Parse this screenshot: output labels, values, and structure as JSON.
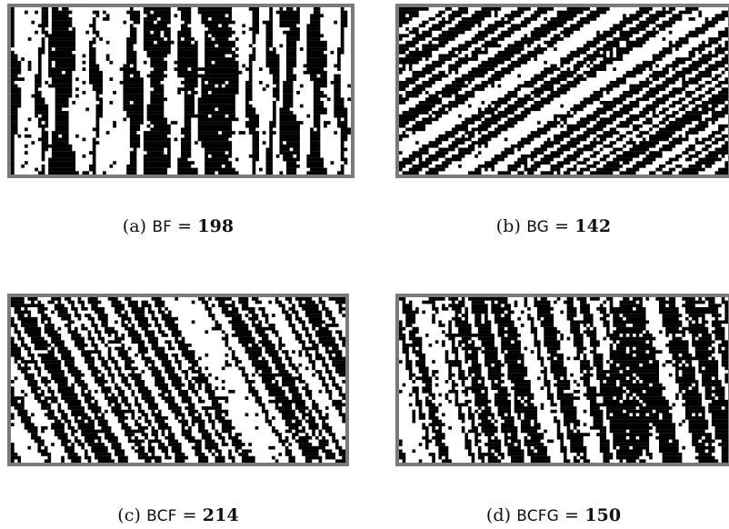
{
  "panels": [
    {
      "id": "a",
      "label": "(a)",
      "name": "BF",
      "equals": "=",
      "value": "198",
      "pattern": "vertical",
      "seed": 7
    },
    {
      "id": "b",
      "label": "(b)",
      "name": "BG",
      "equals": "=",
      "value": "142",
      "pattern": "diagonal",
      "seed": 11
    },
    {
      "id": "c",
      "label": "(c)",
      "name": "BCF",
      "equals": "=",
      "value": "214",
      "pattern": "slanted",
      "seed": 19
    },
    {
      "id": "d",
      "label": "(d)",
      "name": "BCFG",
      "equals": "=",
      "value": "150",
      "pattern": "blobs",
      "seed": 23
    }
  ],
  "colors": {
    "cell_on": "#000000",
    "cell_off": "#ffffff",
    "frame": "#7a7a7a"
  }
}
